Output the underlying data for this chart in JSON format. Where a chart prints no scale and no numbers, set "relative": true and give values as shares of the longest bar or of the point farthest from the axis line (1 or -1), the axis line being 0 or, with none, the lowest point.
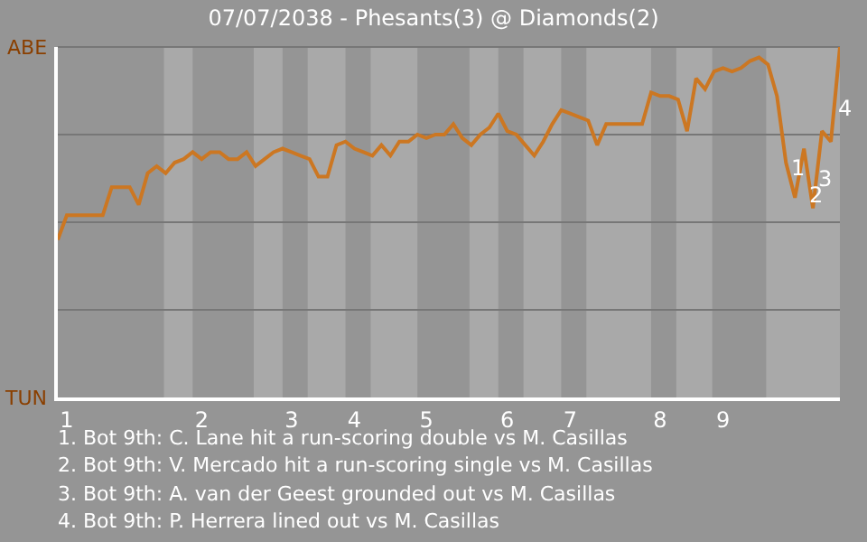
{
  "chart_data": {
    "type": "line",
    "title": "07/07/2038 - Phesants(3) @ Diamonds(2)",
    "relative": true,
    "categories": [
      null,
      "1",
      null,
      null,
      null,
      null,
      null,
      null,
      null,
      null,
      null,
      null,
      null,
      null,
      null,
      null,
      "2",
      null,
      null,
      null,
      null,
      null,
      null,
      null,
      null,
      null,
      "3",
      null,
      null,
      null,
      null,
      null,
      null,
      "4",
      null,
      null,
      null,
      null,
      null,
      null,
      null,
      "5",
      null,
      null,
      null,
      null,
      null,
      null,
      null,
      null,
      "6",
      null,
      null,
      null,
      null,
      null,
      null,
      "7",
      null,
      null,
      null,
      null,
      null,
      null,
      null,
      null,
      null,
      "8",
      null,
      null,
      null,
      null,
      null,
      null,
      "9",
      null,
      null,
      null,
      null,
      null,
      null,
      null,
      null,
      null,
      null,
      null,
      null,
      null
    ],
    "series": [
      {
        "color": "#cc7722",
        "values": [
          0.45,
          0.52,
          0.52,
          0.52,
          0.52,
          0.52,
          0.6,
          0.6,
          0.6,
          0.55,
          0.64,
          0.66,
          0.64,
          0.67,
          0.68,
          0.7,
          0.68,
          0.7,
          0.7,
          0.68,
          0.68,
          0.7,
          0.66,
          0.68,
          0.7,
          0.71,
          0.7,
          0.69,
          0.68,
          0.63,
          0.63,
          0.72,
          0.73,
          0.71,
          0.7,
          0.69,
          0.72,
          0.69,
          0.73,
          0.73,
          0.75,
          0.74,
          0.75,
          0.75,
          0.78,
          0.74,
          0.72,
          0.75,
          0.77,
          0.81,
          0.76,
          0.75,
          0.72,
          0.69,
          0.73,
          0.78,
          0.82,
          0.81,
          0.8,
          0.79,
          0.72,
          0.78,
          0.78,
          0.78,
          0.78,
          0.78,
          0.87,
          0.86,
          0.86,
          0.85,
          0.76,
          0.91,
          0.88,
          0.93,
          0.94,
          0.93,
          0.94,
          0.96,
          0.97,
          0.95,
          0.86,
          0.67,
          0.57,
          0.71,
          0.54,
          0.76,
          0.73,
          1.0
        ]
      }
    ],
    "grid": "y",
    "marker": "none",
    "line_style": "solid",
    "annotations": [
      "ABE",
      "TUN",
      "1",
      "2",
      "3",
      "4",
      "1. Bot 9th: C. Lane hit a run-scoring double vs M. Casillas",
      "2. Bot 9th: V. Mercado hit a run-scoring single vs M. Casillas",
      "3. Bot 9th: A. van der Geest grounded out vs M. Casillas",
      "4. Bot 9th: P. Herrera lined out vs M. Casillas"
    ]
  }
}
